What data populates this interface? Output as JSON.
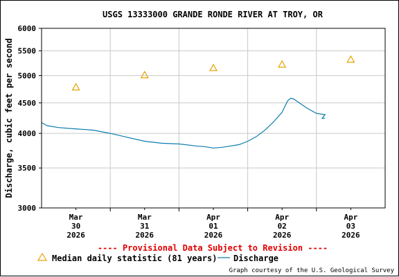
{
  "chart_data": {
    "type": "line",
    "title": "USGS 13333000 GRANDE RONDE RIVER AT TROY, OR",
    "ylabel": "Discharge, cubic feet per second",
    "xlabel": "",
    "y_scale": "log",
    "ylim": [
      3000,
      6000
    ],
    "y_ticks": [
      3000,
      3500,
      4000,
      4500,
      5000,
      5500,
      6000
    ],
    "xlim": [
      "2026-03-29 12:00",
      "2026-04-03 12:00"
    ],
    "x_ticks": [
      {
        "month": "Mar",
        "day": "30",
        "year": "2026"
      },
      {
        "month": "Mar",
        "day": "31",
        "year": "2026"
      },
      {
        "month": "Apr",
        "day": "01",
        "year": "2026"
      },
      {
        "month": "Apr",
        "day": "02",
        "year": "2026"
      },
      {
        "month": "Apr",
        "day": "03",
        "year": "2026"
      }
    ],
    "grid": true,
    "notice": "---- Provisional Data Subject to Revision ----",
    "credit": "Graph courtesy of the U.S. Geological Survey",
    "series": [
      {
        "name": "Median daily statistic (81 years)",
        "marker": "triangle",
        "color": "#e8a000",
        "x": [
          "2026-03-30 00:00",
          "2026-03-31 00:00",
          "2026-04-01 00:00",
          "2026-04-02 00:00",
          "2026-04-03 00:00"
        ],
        "values": [
          4780,
          5010,
          5150,
          5220,
          5320
        ]
      },
      {
        "name": "Discharge",
        "marker": "line",
        "color": "#0a7cae",
        "x": [
          "2026-03-29 12:00",
          "2026-03-29 14:00",
          "2026-03-29 18:00",
          "2026-03-30 00:00",
          "2026-03-30 06:00",
          "2026-03-30 12:00",
          "2026-03-30 18:00",
          "2026-03-31 00:00",
          "2026-03-31 06:00",
          "2026-03-31 12:00",
          "2026-03-31 18:00",
          "2026-03-31 21:00",
          "2026-04-01 00:00",
          "2026-04-01 03:00",
          "2026-04-01 06:00",
          "2026-04-01 09:00",
          "2026-04-01 12:00",
          "2026-04-01 15:00",
          "2026-04-01 18:00",
          "2026-04-01 21:00",
          "2026-04-02 00:00",
          "2026-04-02 01:00",
          "2026-04-02 02:00",
          "2026-04-02 03:00",
          "2026-04-02 04:00",
          "2026-04-02 06:00",
          "2026-04-02 09:00",
          "2026-04-02 12:00",
          "2026-04-02 15:00",
          "2026-04-02 14:00",
          "2026-04-02 15:00"
        ],
        "values": [
          4170,
          4120,
          4090,
          4070,
          4050,
          4000,
          3940,
          3880,
          3850,
          3840,
          3810,
          3800,
          3780,
          3790,
          3810,
          3830,
          3880,
          3950,
          4050,
          4180,
          4340,
          4440,
          4540,
          4580,
          4570,
          4500,
          4400,
          4320,
          4300,
          4240,
          4240
        ]
      }
    ]
  }
}
